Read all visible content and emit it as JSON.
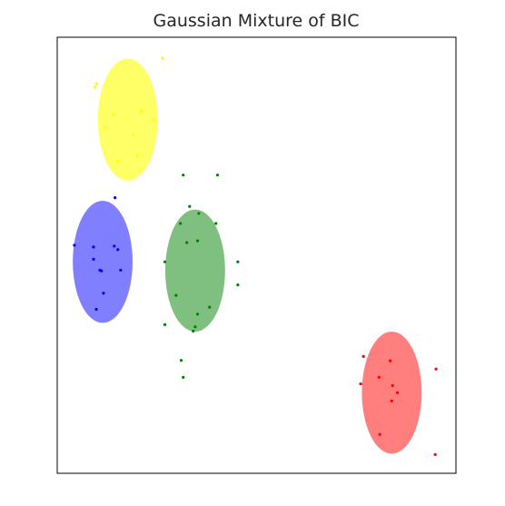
{
  "chart_data": {
    "type": "scatter",
    "title": "Gaussian Mixture of BIC",
    "xlabel": "",
    "ylabel": "",
    "xlim": [
      0,
      100
    ],
    "ylim": [
      0,
      100
    ],
    "grid": false,
    "axis_ticks": false,
    "clusters": [
      {
        "color": "#ffff00",
        "ellipse": {
          "cx": 17.7,
          "cy": 81.1,
          "rx": 7.5,
          "ry": 14.0,
          "opacity": 0.6
        },
        "points": [
          [
            26.4,
            95.2
          ],
          [
            9.8,
            89.4
          ],
          [
            9.5,
            88.6
          ],
          [
            14.1,
            82.3
          ],
          [
            21.1,
            83.0
          ],
          [
            24.1,
            81.1
          ],
          [
            12.0,
            79.3
          ],
          [
            19.1,
            77.6
          ],
          [
            15.2,
            71.6
          ],
          [
            20.0,
            72.9
          ]
        ]
      },
      {
        "color": "#0000ff",
        "ellipse": {
          "cx": 11.4,
          "cy": 48.5,
          "rx": 7.5,
          "ry": 14.0,
          "opacity": 0.5
        },
        "points": [
          [
            14.5,
            63.2
          ],
          [
            4.3,
            52.3
          ],
          [
            9.1,
            51.9
          ],
          [
            14.3,
            52.1
          ],
          [
            15.2,
            51.3
          ],
          [
            9.1,
            49.1
          ],
          [
            10.7,
            46.6
          ],
          [
            11.1,
            46.4
          ],
          [
            15.9,
            46.6
          ],
          [
            11.6,
            41.3
          ],
          [
            9.8,
            37.6
          ]
        ]
      },
      {
        "color": "#008000",
        "ellipse": {
          "cx": 34.6,
          "cy": 46.5,
          "rx": 7.5,
          "ry": 14.0,
          "opacity": 0.5
        },
        "points": [
          [
            31.6,
            68.4
          ],
          [
            40.2,
            68.4
          ],
          [
            33.2,
            61.2
          ],
          [
            35.5,
            59.6
          ],
          [
            30.9,
            57.3
          ],
          [
            39.8,
            57.3
          ],
          [
            32.5,
            52.9
          ],
          [
            35.2,
            53.3
          ],
          [
            27.0,
            48.5
          ],
          [
            45.3,
            48.5
          ],
          [
            45.3,
            43.2
          ],
          [
            29.8,
            40.8
          ],
          [
            38.2,
            38.1
          ],
          [
            35.2,
            36.5
          ],
          [
            27.0,
            34.1
          ],
          [
            34.6,
            33.6
          ],
          [
            34.1,
            32.6
          ],
          [
            31.1,
            25.9
          ],
          [
            31.6,
            22.0
          ]
        ]
      },
      {
        "color": "#ff0000",
        "ellipse": {
          "cx": 83.9,
          "cy": 18.5,
          "rx": 7.5,
          "ry": 14.0,
          "opacity": 0.5
        },
        "points": [
          [
            76.8,
            26.8
          ],
          [
            83.5,
            25.8
          ],
          [
            95.0,
            23.9
          ],
          [
            80.7,
            22.0
          ],
          [
            76.1,
            20.5
          ],
          [
            84.1,
            20.1
          ],
          [
            85.3,
            18.5
          ],
          [
            83.9,
            16.6
          ],
          [
            80.9,
            8.9
          ],
          [
            94.8,
            4.3
          ]
        ]
      }
    ]
  }
}
